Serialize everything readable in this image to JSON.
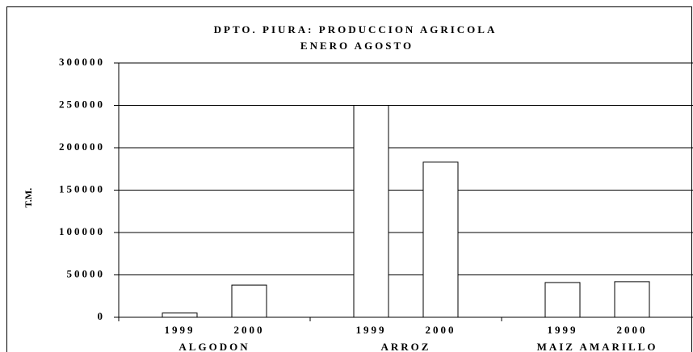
{
  "chart_data": {
    "type": "bar",
    "title": "DPTO. PIURA: PRODUCCION AGRICOLA",
    "subtitle": "ENERO AGOSTO",
    "y_label": "T.M.",
    "categories": [
      "ALGODON",
      "ARROZ",
      "MAIZ AMARILLO"
    ],
    "series": [
      {
        "name": "1999",
        "color": "#ffffff",
        "values": [
          5000,
          250000,
          41000
        ]
      },
      {
        "name": "2000",
        "color": "#ffffff",
        "values": [
          38000,
          183000,
          42000
        ]
      }
    ],
    "ylim": [
      0,
      300000
    ],
    "yticks": [
      0,
      50000,
      100000,
      150000,
      200000,
      250000,
      300000
    ],
    "grid": true
  }
}
